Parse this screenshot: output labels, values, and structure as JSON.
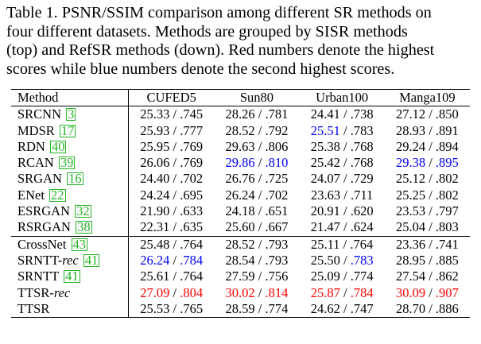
{
  "caption": {
    "line1": "Table 1. PSNR/SSIM comparison among different SR methods on",
    "line2": "four different datasets.  Methods are grouped by SISR methods",
    "line3": "(top) and RefSR methods (down). Red numbers denote the highest",
    "line4": "scores while blue numbers denote the second highest scores."
  },
  "table": {
    "headers": [
      "Method",
      "CUFED5",
      "Sun80",
      "Urban100",
      "Manga109"
    ],
    "rows": [
      {
        "name": "SRCNN",
        "suffix": "",
        "cite": "3",
        "cells": [
          [
            "25.33",
            "745",
            "",
            ""
          ],
          [
            "28.26",
            "781",
            "",
            ""
          ],
          [
            "24.41",
            "738",
            "",
            ""
          ],
          [
            "27.12",
            "850",
            "",
            ""
          ]
        ]
      },
      {
        "name": "MDSR",
        "suffix": "",
        "cite": "17",
        "cells": [
          [
            "25.93",
            "777",
            "",
            ""
          ],
          [
            "28.52",
            "792",
            "",
            ""
          ],
          [
            "25.51",
            "783",
            "blue",
            ""
          ],
          [
            "28.93",
            "891",
            "",
            ""
          ]
        ]
      },
      {
        "name": "RDN",
        "suffix": "",
        "cite": "40",
        "cells": [
          [
            "25.95",
            "769",
            "",
            ""
          ],
          [
            "29.63",
            "806",
            "",
            ""
          ],
          [
            "25.38",
            "768",
            "",
            ""
          ],
          [
            "29.24",
            "894",
            "",
            ""
          ]
        ]
      },
      {
        "name": "RCAN",
        "suffix": "",
        "cite": "39",
        "cells": [
          [
            "26.06",
            "769",
            "",
            ""
          ],
          [
            "29.86",
            "810",
            "blue",
            "blue"
          ],
          [
            "25.42",
            "768",
            "",
            ""
          ],
          [
            "29.38",
            "895",
            "blue",
            "blue"
          ]
        ]
      },
      {
        "name": "SRGAN",
        "suffix": "",
        "cite": "16",
        "cells": [
          [
            "24.40",
            "702",
            "",
            ""
          ],
          [
            "26.76",
            "725",
            "",
            ""
          ],
          [
            "24.07",
            "729",
            "",
            ""
          ],
          [
            "25.12",
            "802",
            "",
            ""
          ]
        ]
      },
      {
        "name": "ENet",
        "suffix": "",
        "cite": "22",
        "cells": [
          [
            "24.24",
            "695",
            "",
            ""
          ],
          [
            "26.24",
            "702",
            "",
            ""
          ],
          [
            "23.63",
            "711",
            "",
            ""
          ],
          [
            "25.25",
            "802",
            "",
            ""
          ]
        ]
      },
      {
        "name": "ESRGAN",
        "suffix": "",
        "cite": "32",
        "cells": [
          [
            "21.90",
            "633",
            "",
            ""
          ],
          [
            "24.18",
            "651",
            "",
            ""
          ],
          [
            "20.91",
            "620",
            "",
            ""
          ],
          [
            "23.53",
            "797",
            "",
            ""
          ]
        ]
      },
      {
        "name": "RSRGAN",
        "suffix": "",
        "cite": "38",
        "cells": [
          [
            "22.31",
            "635",
            "",
            ""
          ],
          [
            "25.60",
            "667",
            "",
            ""
          ],
          [
            "21.47",
            "624",
            "",
            ""
          ],
          [
            "25.04",
            "803",
            "",
            ""
          ]
        ]
      },
      {
        "name": "CrossNet",
        "suffix": "",
        "cite": "43",
        "cells": [
          [
            "25.48",
            "764",
            "",
            ""
          ],
          [
            "28.52",
            "793",
            "",
            ""
          ],
          [
            "25.11",
            "764",
            "",
            ""
          ],
          [
            "23.36",
            "741",
            "",
            ""
          ]
        ]
      },
      {
        "name": "SRNTT-",
        "suffix": "rec",
        "cite": "41",
        "cells": [
          [
            "26.24",
            "784",
            "blue",
            "blue"
          ],
          [
            "28.54",
            "793",
            "",
            ""
          ],
          [
            "25.50",
            "783",
            "",
            "blue"
          ],
          [
            "28.95",
            "885",
            "",
            ""
          ]
        ]
      },
      {
        "name": "SRNTT",
        "suffix": "",
        "cite": "41",
        "cells": [
          [
            "25.61",
            "764",
            "",
            ""
          ],
          [
            "27.59",
            "756",
            "",
            ""
          ],
          [
            "25.09",
            "774",
            "",
            ""
          ],
          [
            "27.54",
            "862",
            "",
            ""
          ]
        ]
      },
      {
        "name": "TTSR-",
        "suffix": "rec",
        "cite": "",
        "cells": [
          [
            "27.09",
            "804",
            "red",
            "red"
          ],
          [
            "30.02",
            "814",
            "red",
            "red"
          ],
          [
            "25.87",
            "784",
            "red",
            "red"
          ],
          [
            "30.09",
            "907",
            "red",
            "red"
          ]
        ]
      },
      {
        "name": "TTSR",
        "suffix": "",
        "cite": "",
        "cells": [
          [
            "25.53",
            "765",
            "",
            ""
          ],
          [
            "28.59",
            "774",
            "",
            ""
          ],
          [
            "24.62",
            "747",
            "",
            ""
          ],
          [
            "28.70",
            "886",
            "",
            ""
          ]
        ]
      }
    ]
  },
  "colors": {
    "red": "#ff0000",
    "blue": "#0000ff",
    "cite": "#27b327"
  }
}
